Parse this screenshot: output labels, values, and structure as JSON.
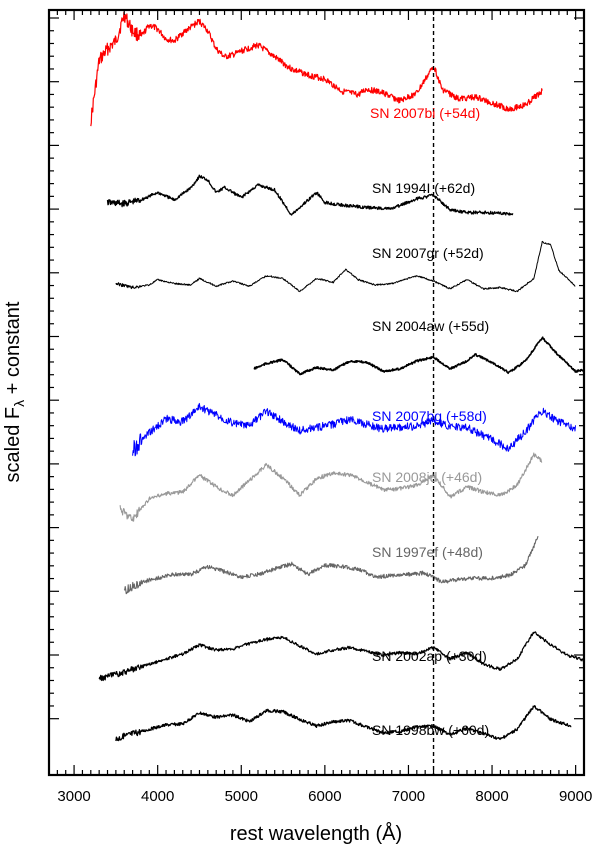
{
  "chart_data": {
    "type": "line",
    "xlabel": "rest wavelength (Å)",
    "ylabel_main": "scaled F",
    "ylabel_sub": "λ",
    "ylabel_tail": " + constant",
    "xlim": [
      2700,
      9100
    ],
    "xticks": [
      {
        "value": 3000,
        "label": "3000"
      },
      {
        "value": 4000,
        "label": "4000"
      },
      {
        "value": 5000,
        "label": "5000"
      },
      {
        "value": 6000,
        "label": "6000"
      },
      {
        "value": 7000,
        "label": "7000"
      },
      {
        "value": 8000,
        "label": "8000"
      },
      {
        "value": 9000,
        "label": "9000"
      }
    ],
    "ytick_count": 12,
    "ytick_labels": "none",
    "reference_line": {
      "x": 7300,
      "style": "dashed"
    },
    "series": [
      {
        "name": "SN 2007bi (+54d)",
        "color": "#ff0000",
        "x_start": 3200,
        "x_end": 8600,
        "points": [
          [
            3200,
            -0.9
          ],
          [
            3300,
            0.6
          ],
          [
            3400,
            0.9
          ],
          [
            3500,
            1.1
          ],
          [
            3600,
            1.75
          ],
          [
            3700,
            1.35
          ],
          [
            3800,
            1.2
          ],
          [
            3900,
            1.5
          ],
          [
            4000,
            1.4
          ],
          [
            4100,
            1.15
          ],
          [
            4200,
            1.1
          ],
          [
            4300,
            1.3
          ],
          [
            4400,
            1.45
          ],
          [
            4500,
            1.6
          ],
          [
            4600,
            1.35
          ],
          [
            4700,
            0.9
          ],
          [
            4800,
            0.7
          ],
          [
            4900,
            0.75
          ],
          [
            5000,
            0.85
          ],
          [
            5200,
            1.0
          ],
          [
            5400,
            0.7
          ],
          [
            5600,
            0.4
          ],
          [
            5800,
            0.25
          ],
          [
            6000,
            0.15
          ],
          [
            6200,
            -0.15
          ],
          [
            6400,
            -0.25
          ],
          [
            6500,
            -0.1
          ],
          [
            6700,
            -0.2
          ],
          [
            6900,
            -0.4
          ],
          [
            7100,
            -0.2
          ],
          [
            7250,
            0.3
          ],
          [
            7300,
            0.5
          ],
          [
            7400,
            -0.1
          ],
          [
            7600,
            -0.35
          ],
          [
            7800,
            -0.3
          ],
          [
            8000,
            -0.45
          ],
          [
            8200,
            -0.6
          ],
          [
            8400,
            -0.5
          ],
          [
            8600,
            -0.15
          ]
        ]
      },
      {
        "name": "SN 1994I (+62d)",
        "color": "#000000",
        "x_start": 3400,
        "x_end": 8250,
        "points": [
          [
            3400,
            -0.9
          ],
          [
            3600,
            -0.95
          ],
          [
            3800,
            -0.8
          ],
          [
            4000,
            -0.5
          ],
          [
            4200,
            -0.8
          ],
          [
            4400,
            -0.3
          ],
          [
            4500,
            0.15
          ],
          [
            4600,
            0.0
          ],
          [
            4700,
            -0.5
          ],
          [
            4800,
            -0.3
          ],
          [
            5000,
            -0.7
          ],
          [
            5200,
            -0.2
          ],
          [
            5400,
            -0.4
          ],
          [
            5600,
            -1.4
          ],
          [
            5800,
            -0.8
          ],
          [
            5900,
            -0.5
          ],
          [
            6000,
            -0.9
          ],
          [
            6200,
            -1.0
          ],
          [
            6500,
            -1.1
          ],
          [
            6800,
            -1.15
          ],
          [
            7100,
            -0.75
          ],
          [
            7300,
            -0.6
          ],
          [
            7500,
            -1.2
          ],
          [
            7700,
            -1.3
          ],
          [
            7900,
            -1.3
          ],
          [
            8250,
            -1.35
          ]
        ]
      },
      {
        "name": "SN 2007gr (+52d)",
        "color": "#000000",
        "x_start": 3500,
        "x_end": 9000,
        "points": [
          [
            3500,
            -1.1
          ],
          [
            3700,
            -1.25
          ],
          [
            3900,
            -1.15
          ],
          [
            4000,
            -0.95
          ],
          [
            4200,
            -1.1
          ],
          [
            4400,
            -1.15
          ],
          [
            4500,
            -0.9
          ],
          [
            4700,
            -1.2
          ],
          [
            4900,
            -1.0
          ],
          [
            5100,
            -1.2
          ],
          [
            5300,
            -0.8
          ],
          [
            5500,
            -0.9
          ],
          [
            5700,
            -1.4
          ],
          [
            5900,
            -0.9
          ],
          [
            6100,
            -1.05
          ],
          [
            6250,
            -0.55
          ],
          [
            6400,
            -0.95
          ],
          [
            6600,
            -1.15
          ],
          [
            6800,
            -1.1
          ],
          [
            7100,
            -0.8
          ],
          [
            7300,
            -1.0
          ],
          [
            7500,
            -1.3
          ],
          [
            7700,
            -0.95
          ],
          [
            7900,
            -1.3
          ],
          [
            8100,
            -1.25
          ],
          [
            8300,
            -1.4
          ],
          [
            8500,
            -0.9
          ],
          [
            8600,
            0.5
          ],
          [
            8700,
            0.4
          ],
          [
            8800,
            -0.6
          ],
          [
            9000,
            -1.2
          ]
        ]
      },
      {
        "name": "SN 2004aw (+55d)",
        "color": "#000000",
        "x_start": 5150,
        "x_end": 9100,
        "points": [
          [
            5150,
            -1.3
          ],
          [
            5300,
            -1.1
          ],
          [
            5500,
            -0.95
          ],
          [
            5700,
            -1.5
          ],
          [
            5900,
            -1.25
          ],
          [
            6100,
            -1.35
          ],
          [
            6300,
            -1.0
          ],
          [
            6500,
            -1.05
          ],
          [
            6700,
            -1.4
          ],
          [
            6900,
            -1.3
          ],
          [
            7100,
            -1.0
          ],
          [
            7300,
            -0.85
          ],
          [
            7500,
            -1.3
          ],
          [
            7700,
            -1.0
          ],
          [
            7800,
            -0.75
          ],
          [
            8000,
            -1.05
          ],
          [
            8200,
            -1.45
          ],
          [
            8400,
            -1.0
          ],
          [
            8600,
            -0.1
          ],
          [
            8800,
            -0.8
          ],
          [
            9000,
            -1.4
          ],
          [
            9100,
            -1.35
          ]
        ]
      },
      {
        "name": "SN 2007bg (+58d)",
        "color": "#0000ff",
        "x_start": 3700,
        "x_end": 9000,
        "points": [
          [
            3700,
            -1.6
          ],
          [
            3900,
            -1.0
          ],
          [
            4100,
            -0.5
          ],
          [
            4300,
            -0.6
          ],
          [
            4500,
            -0.05
          ],
          [
            4700,
            -0.35
          ],
          [
            4900,
            -0.65
          ],
          [
            5100,
            -0.75
          ],
          [
            5300,
            -0.2
          ],
          [
            5500,
            -0.6
          ],
          [
            5700,
            -0.9
          ],
          [
            5900,
            -0.8
          ],
          [
            6100,
            -0.7
          ],
          [
            6300,
            -0.5
          ],
          [
            6500,
            -0.7
          ],
          [
            6700,
            -0.85
          ],
          [
            6900,
            -0.8
          ],
          [
            7100,
            -0.75
          ],
          [
            7300,
            -0.55
          ],
          [
            7500,
            -0.8
          ],
          [
            7700,
            -0.8
          ],
          [
            7900,
            -1.1
          ],
          [
            8100,
            -1.4
          ],
          [
            8200,
            -1.55
          ],
          [
            8400,
            -0.95
          ],
          [
            8600,
            -0.2
          ],
          [
            8800,
            -0.6
          ],
          [
            9000,
            -0.85
          ]
        ]
      },
      {
        "name": "SN 2008jd (+46d)",
        "color": "#999999",
        "x_start": 3550,
        "x_end": 8600,
        "points": [
          [
            3550,
            -1.0
          ],
          [
            3700,
            -1.3
          ],
          [
            3900,
            -0.7
          ],
          [
            4100,
            -0.55
          ],
          [
            4300,
            -0.5
          ],
          [
            4500,
            0.0
          ],
          [
            4700,
            -0.35
          ],
          [
            4900,
            -0.6
          ],
          [
            5100,
            -0.15
          ],
          [
            5300,
            0.3
          ],
          [
            5500,
            -0.1
          ],
          [
            5700,
            -0.6
          ],
          [
            5900,
            -0.1
          ],
          [
            6100,
            0.05
          ],
          [
            6300,
            0.0
          ],
          [
            6500,
            -0.2
          ],
          [
            6700,
            -0.45
          ],
          [
            6900,
            -0.4
          ],
          [
            7100,
            -0.3
          ],
          [
            7300,
            0.0
          ],
          [
            7500,
            -0.65
          ],
          [
            7700,
            -0.35
          ],
          [
            7900,
            -0.5
          ],
          [
            8100,
            -0.6
          ],
          [
            8300,
            -0.3
          ],
          [
            8500,
            0.6
          ],
          [
            8600,
            0.4
          ]
        ]
      },
      {
        "name": "SN 1997ef (+48d)",
        "color": "#666666",
        "x_start": 3600,
        "x_end": 8550,
        "points": [
          [
            3600,
            -1.2
          ],
          [
            3800,
            -0.85
          ],
          [
            4000,
            -0.7
          ],
          [
            4200,
            -0.55
          ],
          [
            4400,
            -0.55
          ],
          [
            4600,
            -0.25
          ],
          [
            4800,
            -0.45
          ],
          [
            5000,
            -0.65
          ],
          [
            5200,
            -0.55
          ],
          [
            5400,
            -0.35
          ],
          [
            5600,
            -0.15
          ],
          [
            5800,
            -0.55
          ],
          [
            6000,
            -0.2
          ],
          [
            6200,
            -0.25
          ],
          [
            6400,
            -0.35
          ],
          [
            6600,
            -0.65
          ],
          [
            6800,
            -0.6
          ],
          [
            7000,
            -0.55
          ],
          [
            7200,
            -0.5
          ],
          [
            7400,
            -0.85
          ],
          [
            7600,
            -0.75
          ],
          [
            7800,
            -0.7
          ],
          [
            8000,
            -0.7
          ],
          [
            8200,
            -0.6
          ],
          [
            8400,
            -0.2
          ],
          [
            8550,
            0.9
          ]
        ]
      },
      {
        "name": "SN 2002ap (+30d)",
        "color": "#000000",
        "x_start": 3300,
        "x_end": 9100,
        "points": [
          [
            3300,
            -1.1
          ],
          [
            3500,
            -0.95
          ],
          [
            3700,
            -0.75
          ],
          [
            3900,
            -0.55
          ],
          [
            4100,
            -0.35
          ],
          [
            4300,
            -0.15
          ],
          [
            4500,
            0.2
          ],
          [
            4700,
            0.0
          ],
          [
            4900,
            0.05
          ],
          [
            5100,
            0.25
          ],
          [
            5300,
            0.4
          ],
          [
            5500,
            0.5
          ],
          [
            5700,
            0.15
          ],
          [
            5900,
            -0.15
          ],
          [
            6100,
            0.0
          ],
          [
            6300,
            0.1
          ],
          [
            6500,
            -0.05
          ],
          [
            6700,
            -0.2
          ],
          [
            6900,
            -0.1
          ],
          [
            7100,
            -0.15
          ],
          [
            7300,
            0.1
          ],
          [
            7500,
            -0.35
          ],
          [
            7700,
            -0.1
          ],
          [
            7900,
            -0.55
          ],
          [
            8100,
            -0.75
          ],
          [
            8300,
            -0.35
          ],
          [
            8500,
            0.7
          ],
          [
            8700,
            0.2
          ],
          [
            8900,
            -0.2
          ],
          [
            9100,
            -0.4
          ]
        ]
      },
      {
        "name": "SN 1998bw (+60d)",
        "color": "#000000",
        "x_start": 3500,
        "x_end": 8950,
        "points": [
          [
            3500,
            -1.1
          ],
          [
            3700,
            -0.85
          ],
          [
            3900,
            -0.65
          ],
          [
            4100,
            -0.45
          ],
          [
            4300,
            -0.4
          ],
          [
            4500,
            0.1
          ],
          [
            4700,
            -0.1
          ],
          [
            4900,
            0.0
          ],
          [
            5100,
            -0.3
          ],
          [
            5300,
            0.2
          ],
          [
            5500,
            0.15
          ],
          [
            5700,
            -0.2
          ],
          [
            5900,
            -0.5
          ],
          [
            6100,
            -0.3
          ],
          [
            6300,
            -0.25
          ],
          [
            6500,
            -0.55
          ],
          [
            6700,
            -0.8
          ],
          [
            6900,
            -0.75
          ],
          [
            7100,
            -0.55
          ],
          [
            7300,
            -0.5
          ],
          [
            7500,
            -0.9
          ],
          [
            7700,
            -0.6
          ],
          [
            7900,
            -0.85
          ],
          [
            8100,
            -1.1
          ],
          [
            8300,
            -0.65
          ],
          [
            8500,
            0.4
          ],
          [
            8700,
            -0.2
          ],
          [
            8950,
            -0.5
          ]
        ]
      }
    ]
  }
}
